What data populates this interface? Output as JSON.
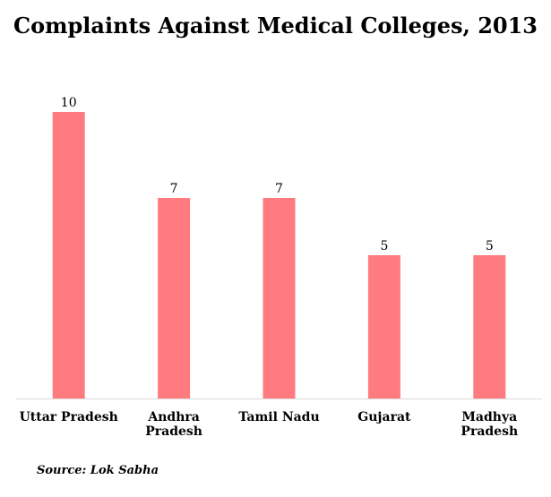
{
  "chart_data": {
    "type": "bar",
    "title": "Complaints Against Medical Colleges, 2013",
    "categories": [
      [
        "Uttar Pradesh"
      ],
      [
        "Andhra",
        "Pradesh"
      ],
      [
        "Tamil Nadu"
      ],
      [
        "Gujarat"
      ],
      [
        "Madhya",
        "Pradesh"
      ]
    ],
    "values": [
      10,
      7,
      7,
      5,
      5
    ],
    "ylim": [
      0,
      10
    ],
    "grid": false,
    "data_labels": true,
    "bar_color": "#ff7b80",
    "axis_color": "#d9d9d9"
  },
  "source": "Source: Lok Sabha"
}
